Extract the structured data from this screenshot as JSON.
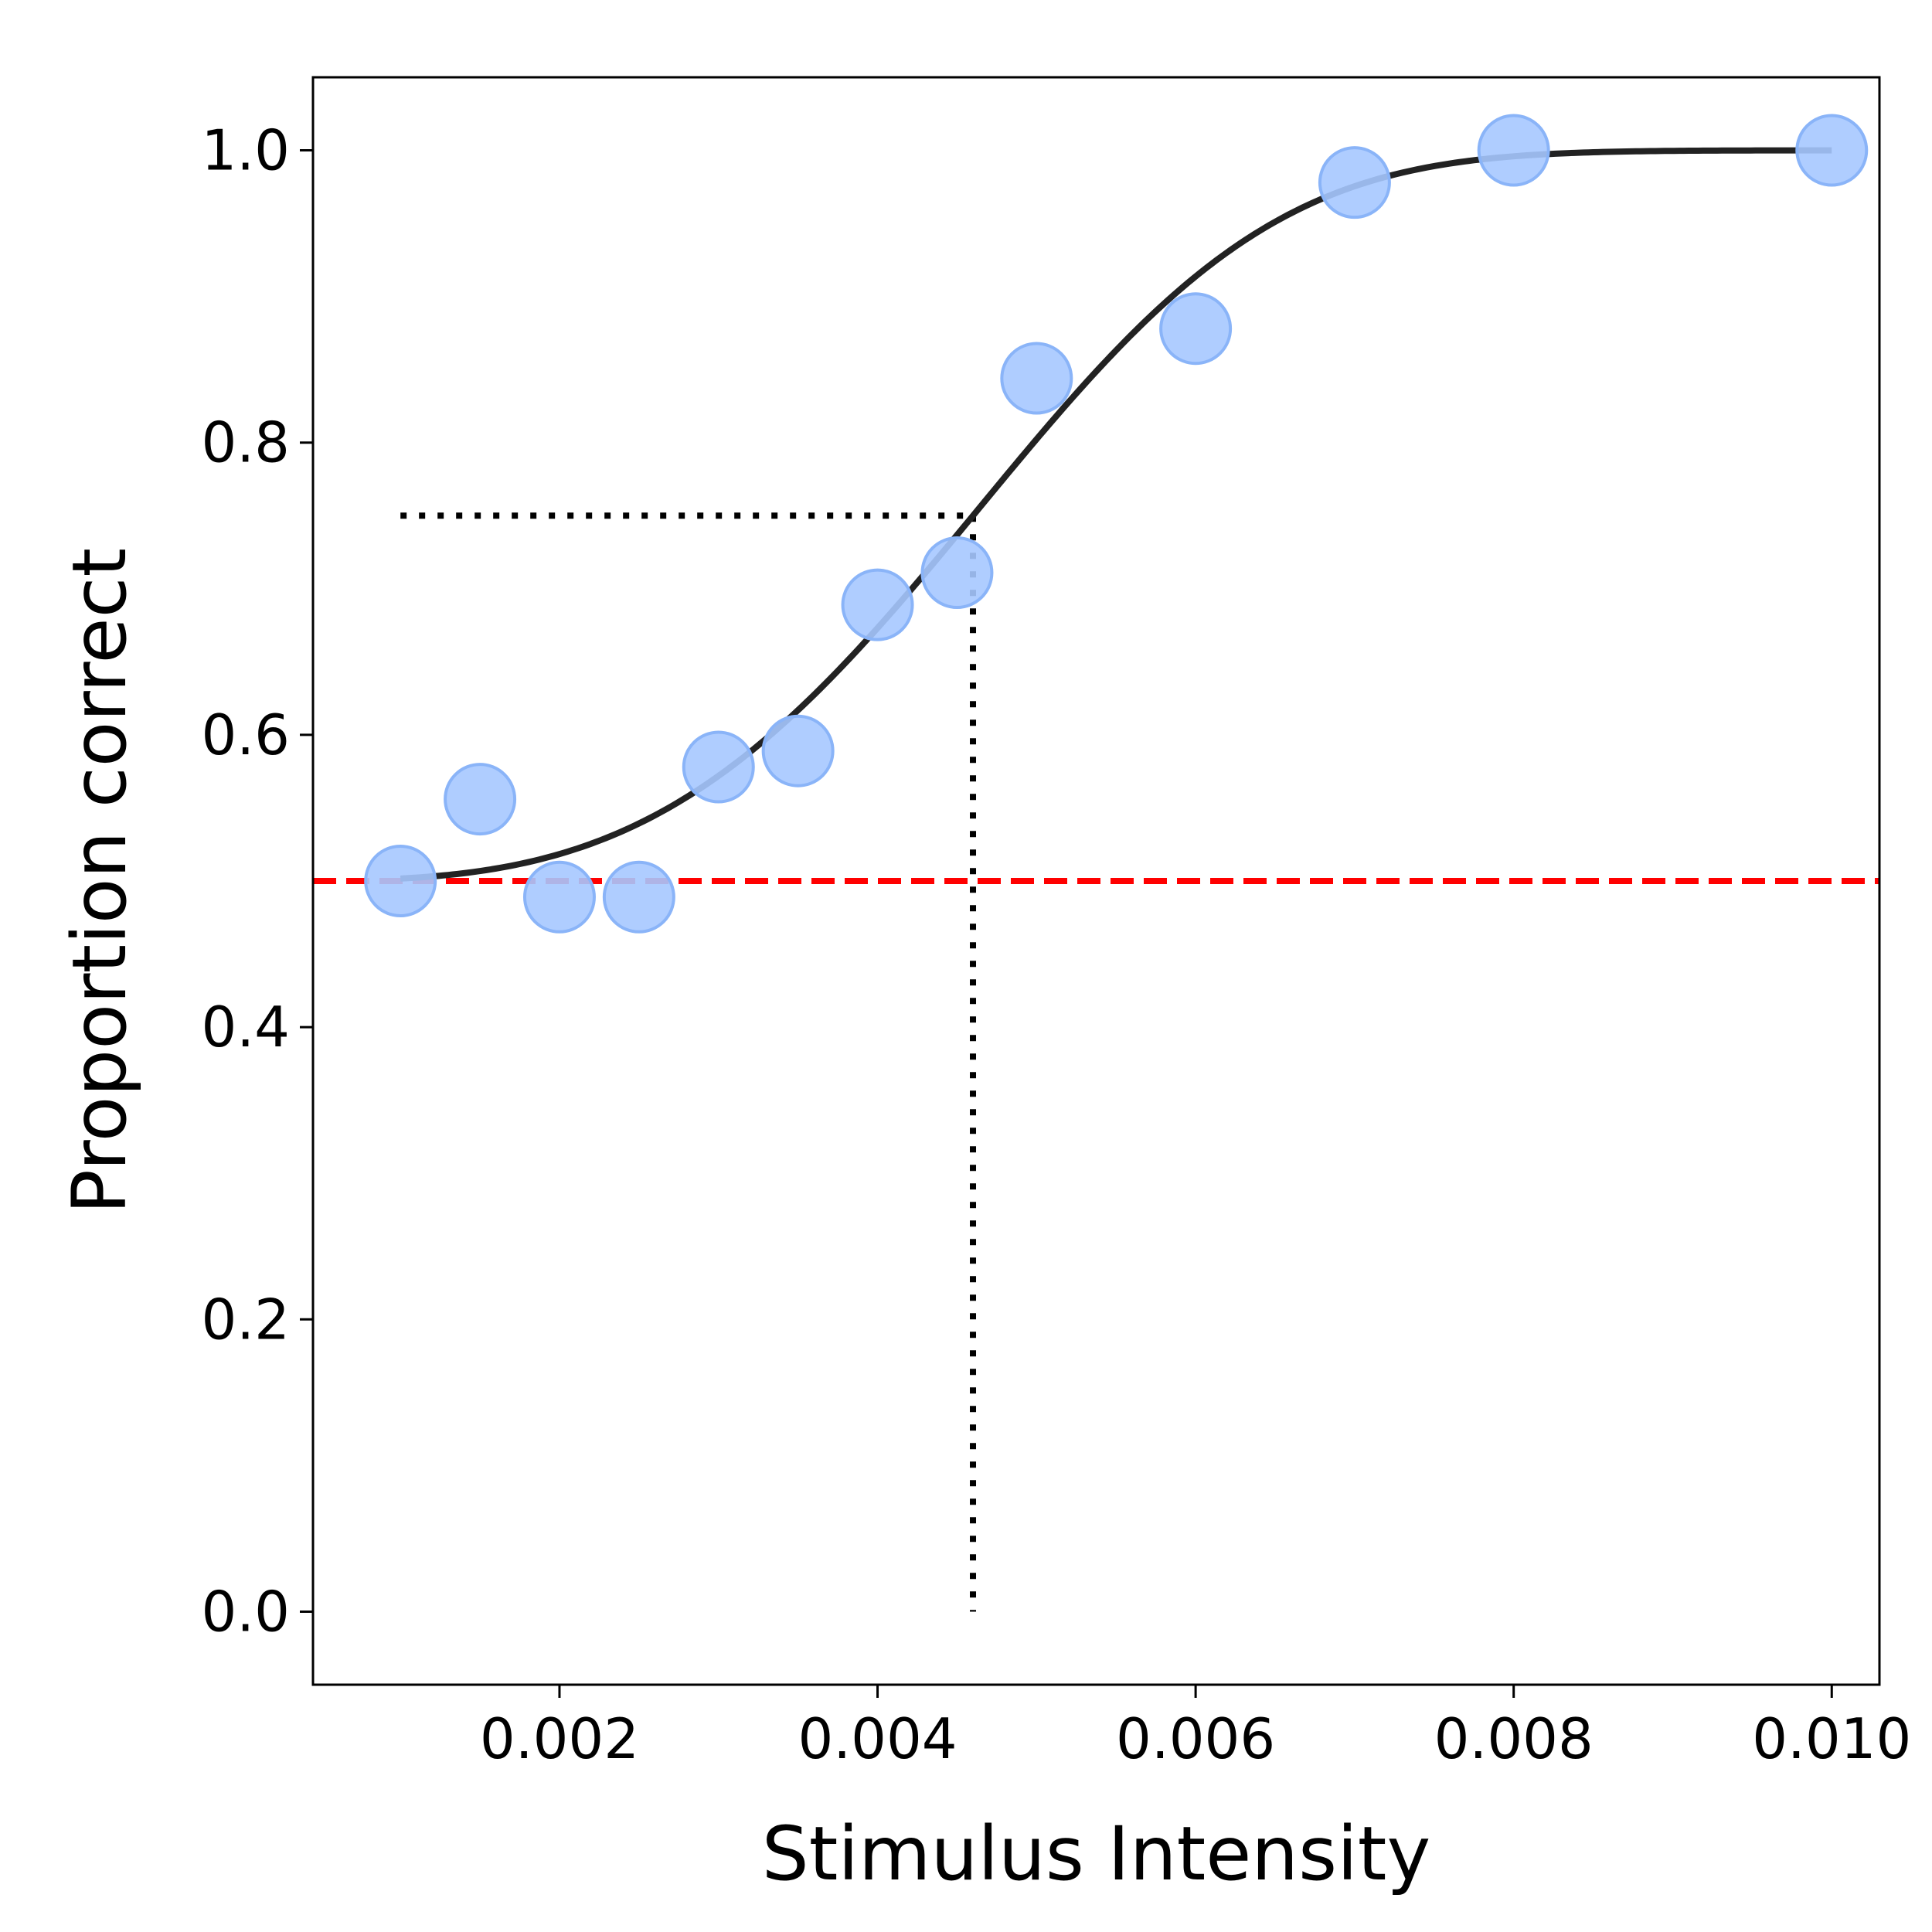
{
  "chart_data": {
    "type": "scatter",
    "xlabel": "Stimulus Intensity",
    "ylabel": "Proportion correct",
    "xlim": [
      0.00045,
      0.0103
    ],
    "ylim": [
      -0.05,
      1.05
    ],
    "x_ticks": [
      0.002,
      0.004,
      0.006,
      0.008,
      0.01
    ],
    "x_tick_labels": [
      "0.002",
      "0.004",
      "0.006",
      "0.008",
      "0.010"
    ],
    "y_ticks": [
      0.0,
      0.2,
      0.4,
      0.6,
      0.8,
      1.0
    ],
    "y_tick_labels": [
      "0.0",
      "0.2",
      "0.4",
      "0.6",
      "0.8",
      "1.0"
    ],
    "grid": false,
    "legend": "none",
    "points": {
      "x": [
        0.001,
        0.0015,
        0.002,
        0.0025,
        0.003,
        0.0035,
        0.004,
        0.0045,
        0.005,
        0.006,
        0.007,
        0.008,
        0.01
      ],
      "y": [
        0.5,
        0.556,
        0.489,
        0.489,
        0.578,
        0.589,
        0.689,
        0.711,
        0.844,
        0.878,
        0.978,
        1.0,
        1.0
      ],
      "color": "#a6c8ff",
      "edge_color": "#8ab4f8"
    },
    "fit_curve": {
      "function": "psychometric_weibull",
      "guess_rate": 0.5,
      "threshold": 0.0046,
      "slope": 3.5,
      "x_range": [
        0.001,
        0.01
      ],
      "color": "#222222"
    },
    "chance_line": {
      "y": 0.5,
      "style": "dashed",
      "color": "#ff0000"
    },
    "threshold_markers": {
      "x": 0.0046,
      "y": 0.75,
      "x_start": 0.001,
      "style": "dotted",
      "color": "#000000"
    }
  }
}
